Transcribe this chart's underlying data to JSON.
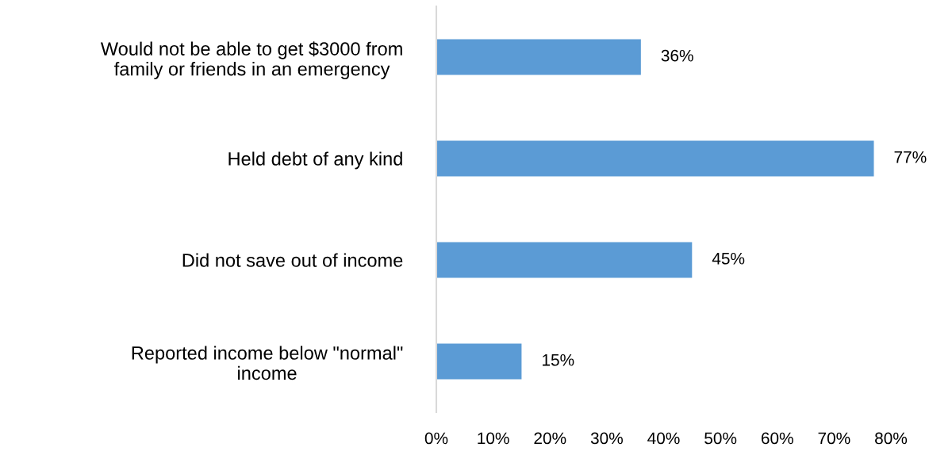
{
  "chart_data": {
    "type": "bar",
    "orientation": "horizontal",
    "categories": [
      "Would not be able to get $3000 from\nfamily or friends in an emergency",
      "Held debt of any kind",
      "Did not save out of income",
      "Reported income below \"normal\"\nincome"
    ],
    "values": [
      36,
      77,
      45,
      15
    ],
    "color": "#5b9bd5",
    "value_labels": [
      "36%",
      "77%",
      "45%",
      "15%"
    ],
    "xlim": [
      0,
      80
    ],
    "xticks": [
      {
        "value": 0,
        "label": "0%"
      },
      {
        "value": 10,
        "label": "10%"
      },
      {
        "value": 20,
        "label": "20%"
      },
      {
        "value": 30,
        "label": "30%"
      },
      {
        "value": 40,
        "label": "40%"
      },
      {
        "value": 50,
        "label": "50%"
      },
      {
        "value": 60,
        "label": "60%"
      },
      {
        "value": 70,
        "label": "70%"
      },
      {
        "value": 80,
        "label": "80%"
      }
    ],
    "grid": false,
    "legend": false
  }
}
